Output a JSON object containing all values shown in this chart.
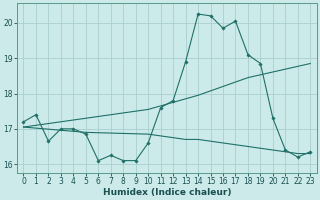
{
  "xlabel": "Humidex (Indice chaleur)",
  "background_color": "#cdeaea",
  "grid_color": "#aacfcf",
  "line_color": "#1e7068",
  "spine_color": "#5a9a8a",
  "tick_color": "#1a5050",
  "xlim": [
    -0.5,
    23.5
  ],
  "ylim": [
    15.75,
    20.55
  ],
  "yticks": [
    16,
    17,
    18,
    19,
    20
  ],
  "xticks": [
    0,
    1,
    2,
    3,
    4,
    5,
    6,
    7,
    8,
    9,
    10,
    11,
    12,
    13,
    14,
    15,
    16,
    17,
    18,
    19,
    20,
    21,
    22,
    23
  ],
  "line1_x": [
    0,
    1,
    2,
    3,
    4,
    5,
    6,
    7,
    8,
    9,
    10,
    11,
    12,
    13,
    14,
    15,
    16,
    17,
    18,
    19,
    20,
    21,
    22,
    23
  ],
  "line1_y": [
    17.2,
    17.4,
    16.65,
    17.0,
    17.0,
    16.85,
    16.1,
    16.25,
    16.1,
    16.1,
    16.6,
    17.6,
    17.8,
    18.9,
    20.25,
    20.2,
    19.85,
    20.05,
    19.1,
    18.85,
    17.3,
    16.4,
    16.2,
    16.35
  ],
  "line2_x": [
    0,
    10,
    14,
    18,
    23
  ],
  "line2_y": [
    17.05,
    17.55,
    17.95,
    18.45,
    18.85
  ],
  "line3_x": [
    0,
    5,
    10,
    11,
    12,
    13,
    14,
    15,
    16,
    17,
    18,
    19,
    20,
    21,
    22,
    23
  ],
  "line3_y": [
    17.05,
    16.9,
    16.85,
    16.8,
    16.75,
    16.7,
    16.7,
    16.65,
    16.6,
    16.55,
    16.5,
    16.45,
    16.4,
    16.35,
    16.3,
    16.3
  ]
}
